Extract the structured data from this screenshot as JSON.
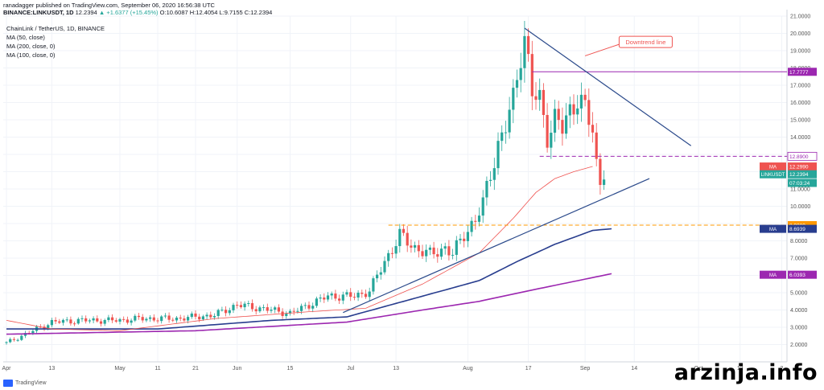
{
  "header": {
    "published": "ranadagger published on TradingView.com, September 06, 2020 16:56:38 UTC",
    "ticker": "BINANCE:LINKUSDT, 1D",
    "price": "12.2394",
    "change": "▲ +1.6377 (+15.45%)",
    "ohlc": "O:10.6087 H:12.4054 L:9.7155 C:12.2394"
  },
  "legend": [
    "ChainLink / TetherUS, 1D, BINANCE",
    "MA (50, close)",
    "MA (200, close, 0)",
    "MA (100, close, 0)"
  ],
  "annotation": {
    "text": "Downtrend line"
  },
  "footer": {
    "logo": "TradingView",
    "watermark": "arzinja.info"
  },
  "colors": {
    "up": "#26a69a",
    "down": "#ef5350",
    "ma50": "#ef5350",
    "ma100": "#283d8e",
    "ma200": "#9c27b0",
    "trend": "#2b4a8b",
    "support": "#ff9800",
    "resist": "#9c27b0",
    "dash": "#9c27b0"
  },
  "chart_data": {
    "type": "candlestick",
    "title": "ChainLink / TetherUS, 1D, BINANCE",
    "ylim": [
      1,
      21
    ],
    "y_ticks": [
      "2.0000",
      "3.0000",
      "4.0000",
      "5.0000",
      "6.0000",
      "7.0000",
      "8.0000",
      "9.0000",
      "10.0000",
      "11.0000",
      "12.0000",
      "13.0000",
      "14.0000",
      "15.0000",
      "16.0000",
      "17.0000",
      "18.0000",
      "19.0000",
      "20.0000",
      "21.0000"
    ],
    "x_ticks": [
      {
        "label": "Apr",
        "day": 0
      },
      {
        "label": "13",
        "day": 12
      },
      {
        "label": "May",
        "day": 30
      },
      {
        "label": "11",
        "day": 40
      },
      {
        "label": "21",
        "day": 50
      },
      {
        "label": "Jun",
        "day": 61
      },
      {
        "label": "15",
        "day": 75
      },
      {
        "label": "Jul",
        "day": 91
      },
      {
        "label": "13",
        "day": 103
      },
      {
        "label": "Aug",
        "day": 122
      },
      {
        "label": "17",
        "day": 138
      },
      {
        "label": "Sep",
        "day": 153
      },
      {
        "label": "14",
        "day": 166
      },
      {
        "label": "Oct",
        "day": 183
      },
      {
        "label": "12",
        "day": 194
      },
      {
        "label": "2",
        "day": 205
      }
    ],
    "candles_anchor": [
      [
        0,
        2.1
      ],
      [
        8,
        2.9
      ],
      [
        12,
        3.3
      ],
      [
        20,
        3.4
      ],
      [
        30,
        3.4
      ],
      [
        35,
        3.5
      ],
      [
        45,
        3.5
      ],
      [
        55,
        3.7
      ],
      [
        61,
        4.3
      ],
      [
        70,
        4.0
      ],
      [
        75,
        3.8
      ],
      [
        80,
        4.3
      ],
      [
        85,
        4.8
      ],
      [
        92,
        4.8
      ],
      [
        96,
        5.1
      ],
      [
        100,
        6.8
      ],
      [
        104,
        8.3
      ],
      [
        108,
        7.6
      ],
      [
        112,
        7.2
      ],
      [
        116,
        7.6
      ],
      [
        118,
        7.2
      ],
      [
        121,
        8.4
      ],
      [
        124,
        9.2
      ],
      [
        126,
        10.1
      ],
      [
        128,
        12.0
      ],
      [
        130,
        13.5
      ],
      [
        132,
        14.6
      ],
      [
        134,
        16.1
      ],
      [
        136,
        19.1
      ],
      [
        137,
        19.8
      ],
      [
        139,
        16.5
      ],
      [
        141,
        16.1
      ],
      [
        143,
        14.2
      ],
      [
        145,
        15.0
      ],
      [
        147,
        14.5
      ],
      [
        149,
        15.5
      ],
      [
        151,
        16.4
      ],
      [
        153,
        15.5
      ],
      [
        155,
        14.4
      ],
      [
        156,
        12.4
      ],
      [
        157,
        11.4
      ],
      [
        158,
        12.2
      ]
    ],
    "ma50_anchor": [
      [
        0,
        3.4
      ],
      [
        12,
        2.9
      ],
      [
        30,
        2.8
      ],
      [
        55,
        3.5
      ],
      [
        80,
        3.9
      ],
      [
        95,
        4.1
      ],
      [
        110,
        5.5
      ],
      [
        125,
        7.3
      ],
      [
        134,
        9.3
      ],
      [
        140,
        10.8
      ],
      [
        145,
        11.6
      ],
      [
        150,
        12.0
      ],
      [
        155,
        12.3
      ]
    ],
    "ma100_anchor": [
      [
        0,
        2.9
      ],
      [
        40,
        2.9
      ],
      [
        70,
        3.4
      ],
      [
        90,
        3.6
      ],
      [
        110,
        4.8
      ],
      [
        125,
        5.7
      ],
      [
        135,
        6.8
      ],
      [
        145,
        7.8
      ],
      [
        155,
        8.6
      ],
      [
        160,
        8.7
      ]
    ],
    "ma200_anchor": [
      [
        0,
        2.6
      ],
      [
        50,
        2.8
      ],
      [
        90,
        3.3
      ],
      [
        110,
        4.0
      ],
      [
        125,
        4.5
      ],
      [
        140,
        5.2
      ],
      [
        160,
        6.1
      ]
    ],
    "labels": [
      {
        "text": "17.7777",
        "value": 17.7777,
        "color": "#9c27b0"
      },
      {
        "text": "12.8900",
        "value": 12.89,
        "color": "#ffffff",
        "text_color": "#9c27b0",
        "dashed": true
      },
      {
        "text": "MA",
        "value": 12.299,
        "color": "#ef5350",
        "text_left": "MA",
        "text_right": "12.2990"
      },
      {
        "text": "LINKUSDT",
        "value": 11.85,
        "color": "#26a69a",
        "text_left": "LINKUSDT",
        "text_right": "12.2394"
      },
      {
        "text": "07:03:24",
        "value": 11.35,
        "color": "#26a69a"
      },
      {
        "text": "8.9080",
        "value": 8.908,
        "color": "#ff9800"
      },
      {
        "text": "MA",
        "value": 8.6939,
        "color": "#283d8e",
        "text_left": "MA",
        "text_right": "8.6939"
      },
      {
        "text": "MA",
        "value": 6.0393,
        "color": "#9c27b0",
        "text_left": "MA",
        "text_right": "6.0393"
      }
    ],
    "support_level": 8.908,
    "resistance_level": 17.7777,
    "dashed_level": 12.89
  }
}
